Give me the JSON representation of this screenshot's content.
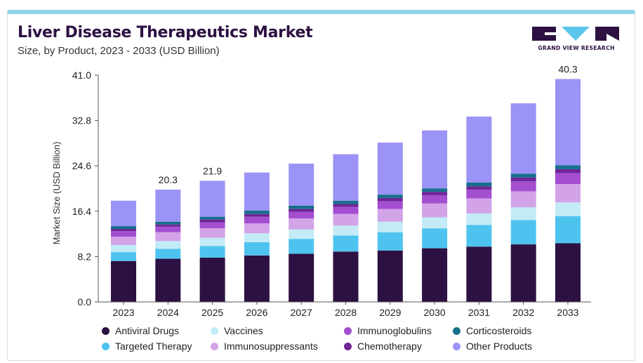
{
  "header": {
    "title": "Liver Disease Therapeutics Market",
    "subtitle": "Size, by Product, 2023 - 2033 (USD Billion)"
  },
  "brand": {
    "name": "GRAND VIEW RESEARCH",
    "logo_color": "#2c1142",
    "accent_color": "#5bc6ec"
  },
  "chart_data": {
    "type": "bar",
    "stacked": true,
    "ylabel": "Market Size (USD Billion)",
    "ylim": [
      0,
      41
    ],
    "yticks": [
      "0.0",
      "8.2",
      "16.4",
      "24.6",
      "32.8",
      "41.0"
    ],
    "categories": [
      "2023",
      "2024",
      "2025",
      "2026",
      "2027",
      "2028",
      "2029",
      "2030",
      "2031",
      "2032",
      "2033"
    ],
    "grid": false,
    "legend_position": "bottom",
    "series": [
      {
        "name": "Antiviral Drugs",
        "color": "#2c1142",
        "values": [
          7.4,
          7.8,
          8.0,
          8.4,
          8.7,
          9.1,
          9.3,
          9.7,
          10.0,
          10.4,
          10.6
        ]
      },
      {
        "name": "Targeted Therapy",
        "color": "#4fc3ef",
        "values": [
          1.6,
          1.8,
          2.1,
          2.4,
          2.7,
          2.9,
          3.3,
          3.6,
          3.9,
          4.4,
          4.9
        ]
      },
      {
        "name": "Vaccines",
        "color": "#c3ebf7",
        "values": [
          1.3,
          1.4,
          1.5,
          1.6,
          1.7,
          1.8,
          1.9,
          2.0,
          2.1,
          2.3,
          2.5
        ]
      },
      {
        "name": "Immunosuppressants",
        "color": "#d3a3e8",
        "values": [
          1.5,
          1.6,
          1.7,
          1.8,
          2.0,
          2.1,
          2.3,
          2.5,
          2.7,
          2.9,
          3.3
        ]
      },
      {
        "name": "Immunoglobulins",
        "color": "#a44ed0",
        "values": [
          1.0,
          1.0,
          1.1,
          1.2,
          1.2,
          1.3,
          1.4,
          1.5,
          1.6,
          1.8,
          2.0
        ]
      },
      {
        "name": "Chemotherapy",
        "color": "#6f2596",
        "values": [
          0.4,
          0.4,
          0.5,
          0.5,
          0.5,
          0.5,
          0.6,
          0.6,
          0.6,
          0.7,
          0.7
        ]
      },
      {
        "name": "Corticosteroids",
        "color": "#176f8c",
        "values": [
          0.5,
          0.5,
          0.5,
          0.6,
          0.6,
          0.6,
          0.6,
          0.6,
          0.7,
          0.7,
          0.7
        ]
      },
      {
        "name": "Other Products",
        "color": "#9b93f5",
        "values": [
          4.6,
          5.8,
          6.5,
          6.9,
          7.6,
          8.4,
          9.4,
          10.5,
          11.9,
          12.7,
          15.6
        ]
      }
    ],
    "annotations": [
      {
        "category": "2024",
        "label": "20.3"
      },
      {
        "category": "2025",
        "label": "21.9"
      },
      {
        "category": "2033",
        "label": "40.3"
      }
    ]
  }
}
